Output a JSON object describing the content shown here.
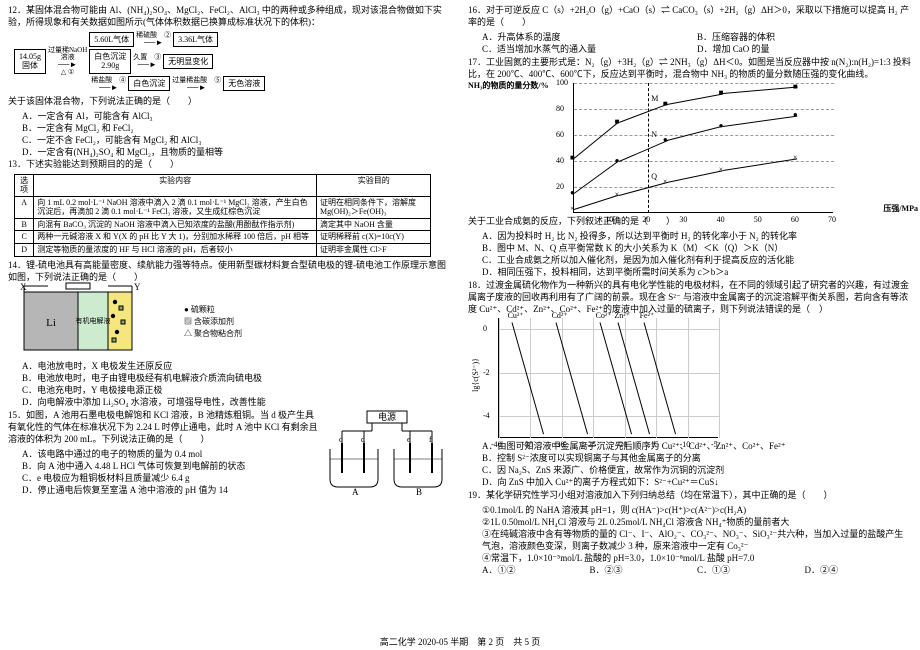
{
  "footer": "高二化学 2020-05 半期　第 2 页　共 5 页",
  "left": {
    "q12_stem": "12．某固体混合物可能由 Al、(NH₄)₂SO₄、MgCl₂、FeCl₂、AlCl₃ 中的两种或多种组成，现对该混合物做如下实验，所得现象和有关数据如图所示(气体体积数据已换算成标准状况下的体积)：",
    "flow": {
      "start_top": "14.05g",
      "start_bot": "固体",
      "a1_top": "过量稀NaOH",
      "a1_bot": "溶液",
      "a1_sym": "△ ①",
      "b1": "5.60L气体",
      "a2": "稀硫酸　②",
      "b2": "3.36L气体",
      "mid_top": "白色沉淀",
      "mid_bot": "2.90g",
      "a3": "久置　③",
      "b3": "无明显变化",
      "a4": "稀盐酸　④",
      "b4": "白色沉淀",
      "a5": "过量稀盐酸　⑤",
      "b5": "无色溶液"
    },
    "q12_ask": "关于该固体混合物，下列说法正确的是（　　）",
    "q12_A": "A．一定含有 Al，可能含有 AlCl₃",
    "q12_B": "B．一定含有 MgCl₂ 和 FeCl₂",
    "q12_C": "C．一定不含 FeCl₂，可能含有 MgCl₂ 和 AlCl₃",
    "q12_D": "D．一定含有(NH₄)₂SO₄ 和 MgCl₂，且物质的量相等",
    "q13_stem": "13．下述实验能达到预期目的的是（　　）",
    "tbl": {
      "h1": "选项",
      "h2": "实验内容",
      "h3": "实验目的",
      "A2": "向 1 mL 0.2 mol·L⁻¹ NaOH 溶液中滴入 2 滴 0.1 mol·L⁻¹ MgCl₂ 溶液，产生白色沉淀后，再滴加 2 滴 0.1 mol·L⁻¹ FeCl₃ 溶液，又生成红棕色沉淀",
      "A3": "证明在相同条件下，溶解度 Mg(OH)₂＞Fe(OH)₃",
      "B2": "向混有 BaCO₃ 沉淀的 NaOH 溶液中滴入已知浓度的盐酸(用酚酞作指示剂)",
      "B3": "滴定其中 NaOH 含量",
      "C2": "两种一元碱溶液 X 和 Y(X 的 pH 比 Y 大 1)，分别加水稀释 100 倍后，pH 相等",
      "C3": "证明稀释前 c(X)=10c(Y)",
      "D2": "测定等物质的量浓度的 HF 与 HCl 溶液的 pH，后者较小",
      "D3": "证明非金属性 Cl>F"
    },
    "q14_stem": "14．锂-硫电池具有高能量密度、续航能力强等特点。使用新型碳材料复合型硫电极的锂-硫电池工作原理示意图如图，下列说法正确的是（　　）",
    "batt": {
      "X": "X",
      "Y": "Y",
      "Li": "Li",
      "elec": "有机电解液",
      "l1": "硫颗粒",
      "l2": "含碳添加剂",
      "l3": "聚合物粘合剂",
      "dot": "●",
      "sq": "▨",
      "tri": "△"
    },
    "q14_A": "A．电池放电时，X 电极发生还原反应",
    "q14_B": "B．电池放电时，电子由锂电极经有机电解液介质流向硫电极",
    "q14_C": "C．电池充电时，Y 电极接电源正极",
    "q14_D": "D．向电解液中添加 Li₂SO₄ 水溶液，可增强导电性，改善性能",
    "q15_stem": "15．如图，A 池用石墨电极电解饱和 KCl 溶液，B 池精炼粗铜。当 d 极产生具有氧化性的气体在标准状况下为 2.24 L 时停止通电，此时 A 池中 KCl 有剩余且溶液的体积为 200 mL。下列说法正确的是（　　）",
    "elec": {
      "top": "电源",
      "c": "c",
      "d": "d",
      "e": "e",
      "f": "f",
      "A": "A",
      "B": "B"
    },
    "q15_A": "A．该电路中通过的电子的物质的量为 0.4 mol",
    "q15_B": "B．向 A 池中通入 4.48 L HCl 气体可恢复到电解前的状态",
    "q15_C": "C．e 电极应为粗铜板材料且质量减少 6.4 g",
    "q15_D": "D．停止通电后恢复至室温 A 池中溶液的 pH 值为 14"
  },
  "right": {
    "q16_stem": "16．对于可逆反应 C（s）+2H₂O（g）+CaO（s）⇌ CaCO₃（s）+2H₂（g）ΔH＞0，采取以下措施可以提高 H₂ 产率的是（　　）",
    "q16_A": "A．升高体系的温度",
    "q16_B": "B．压缩容器的体积",
    "q16_C": "C．适当增加水蒸气的通入量",
    "q16_D": "D．增加 CaO 的量",
    "q17_stem": "17．工业固氮的主要形式是：N₂（g）+3H₂（g）⇌ 2NH₃（g）ΔH＜0。如图是当反应器中按 n(N₂):n(H₂)=1:3 投料比，在 200℃、400℃、600℃下，反应达到平衡时，混合物中 NH₃ 的物质的量分数随压强的变化曲线。",
    "chart1": {
      "ylabel": "NH₃的物质的量分数/%",
      "xlabel": "压强/MPa",
      "yticks": [
        "20",
        "40",
        "60",
        "80",
        "100"
      ],
      "xticks": [
        "",
        "10",
        "20",
        "30",
        "40",
        "50",
        "60",
        "70"
      ],
      "series": [
        {
          "label": "M",
          "pts": [
            [
              0,
              42
            ],
            [
              12,
              70
            ],
            [
              25,
              84
            ],
            [
              40,
              92
            ],
            [
              60,
              97
            ]
          ]
        },
        {
          "label": "N",
          "pts": [
            [
              0,
              15
            ],
            [
              12,
              40
            ],
            [
              25,
              56
            ],
            [
              40,
              67
            ],
            [
              60,
              75
            ]
          ]
        },
        {
          "label": "Q",
          "pts": [
            [
              0,
              3
            ],
            [
              12,
              14
            ],
            [
              25,
              24
            ],
            [
              40,
              33
            ],
            [
              60,
              42
            ]
          ]
        }
      ],
      "dashx": 20
    },
    "q17_ask": "关于工业合成氨的反应，下列叙述正确的是（　　）",
    "q17_A": "A．因为投料时 H₂ 比 N₂ 投得多，所以达到平衡时 H₂ 的转化率小于 N₂ 的转化率",
    "q17_B": "B．图中 M、N、Q 点平衡常数 K 的大小关系为 K（M）＜K（Q）＞K（N）",
    "q17_C": "C．工业合成氨之所以加入催化剂，是因为加入催化剂有利于提高反应的活化能",
    "q17_D": "D．相同压强下，投料相同，达到平衡所需时间关系为 c＞b＞a",
    "q18_stem": "18．过渡金属硫化物作为一种新兴的具有电化学性能的电极材料，在不同的领域引起了研究者的兴趣，有过渡金属离子废液的回收再利用有了广阔的前景。现在含 S²⁻ 与溶液中金属离子的沉淀溶解平衡关系图，若向含有等浓度 Cu²⁺、Cd²⁺、Zn²⁺、Co²⁺、Fe²⁺的废液中加入过量的硫离子，则下列说法错误的是（　）",
    "chart2": {
      "ylabel": "lg{c(S²⁻)}",
      "xlabel": "",
      "yticks": [
        "-4",
        "-2",
        "0"
      ],
      "xticks": [
        "-40",
        "-35",
        "-30",
        "-25",
        "-20",
        "-15",
        "-10",
        "-5"
      ],
      "labels": [
        "Cu²⁺",
        "Cd²⁺",
        "Co²⁺",
        "Zn²⁺",
        "Fe²⁺"
      ]
    },
    "q18_A": "A．由图可知溶液中金属离子沉淀先后顺序为 Cu²⁺、Cd²⁺、Zn²⁺、Co²⁺、Fe²⁺",
    "q18_B": "B．控制 S²⁻浓度可以实现铜离子与其他金属离子的分离",
    "q18_C": "C．因 Na₂S、ZnS 来源广、价格便宜，故常作为沉铜的沉淀剂",
    "q18_D": "D．向 ZnS 中加入 Cu²⁺的离子方程式如下：S²⁻+Cu²⁺＝CuS↓",
    "q19_stem": "19．某化学研究性学习小组对溶液加入下列归纳总结（均在常温下），其中正确的是（　　）",
    "s1": "①0.1mol/L 的 NaHA 溶液其 pH=1，则 c(HA⁻)>c(H⁺)>c(A²⁻)>c(H₂A)",
    "s2": "②1L 0.50mol/L NH₄Cl 溶液与 2L 0.25mol/L NH₄Cl 溶液含 NH₄⁺物质的量前者大",
    "s3": "③在纯碱溶液中含有等物质的量的 Cl⁻、I⁻、AlO₂⁻、CO₃²⁻、NO₃⁻、SiO₃²⁻共六种，当加入过量的盐酸产生气泡，溶液颜色变深，则离子数减少 3 种，原来溶液中一定有 Co₃²⁻",
    "s4": "④常温下，1.0×10⁻⁵mol/L 盐酸的 pH=3.0，1.0×10⁻⁸mol/L 盐酸 pH=7.0",
    "q19_A": "A．①②",
    "q19_B": "B．②③",
    "q19_C": "C．①③",
    "q19_D": "D．②④"
  }
}
